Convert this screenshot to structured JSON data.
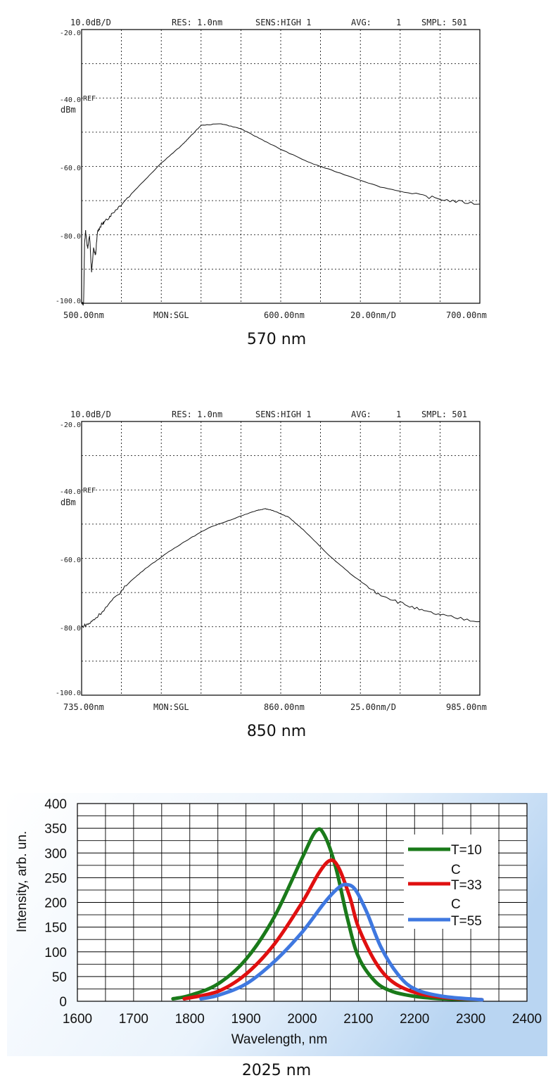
{
  "chart_data": [
    {
      "type": "line",
      "header": {
        "scale": "10.0dB/D",
        "res": "RES: 1.0nm",
        "sens": "SENS:HIGH 1",
        "avg_label": "AVG:",
        "avg_value": "1",
        "smpl": "SMPL: 501"
      },
      "footer": {
        "start": "500.00nm",
        "mon": "MON:SGL",
        "center": "600.00nm",
        "span": "20.00nm/D",
        "stop": "700.00nm"
      },
      "yticks": [
        "-20.0",
        "-40.0",
        "-60.0",
        "-80.0",
        "-100.0"
      ],
      "ref_label": "REF",
      "unit_label": "dBm",
      "caption": "570 nm",
      "xlim": [
        500,
        700
      ],
      "ylim": [
        -100,
        -20
      ],
      "grid": true,
      "series": [
        {
          "x": [
            500,
            501,
            501.5,
            502,
            503,
            504,
            505,
            506,
            507,
            508,
            510,
            512,
            515,
            520,
            530,
            540,
            550,
            555,
            560,
            570,
            580,
            590,
            600,
            615,
            630,
            650,
            670,
            685,
            700
          ],
          "y": [
            -100,
            -100,
            -82,
            -79,
            -84,
            -80,
            -91,
            -84,
            -86,
            -79,
            -77,
            -76,
            -74,
            -71,
            -65,
            -59,
            -54,
            -51,
            -48,
            -47.5,
            -49,
            -52,
            -55,
            -59,
            -62,
            -66,
            -68.5,
            -70,
            -71
          ]
        }
      ]
    },
    {
      "type": "line",
      "header": {
        "scale": "10.0dB/D",
        "res": "RES: 1.0nm",
        "sens": "SENS:HIGH 1",
        "avg_label": "AVG:",
        "avg_value": "1",
        "smpl": "SMPL: 501"
      },
      "footer": {
        "start": "735.00nm",
        "mon": "MON:SGL",
        "center": "860.00nm",
        "span": "25.00nm/D",
        "stop": "985.00nm"
      },
      "yticks": [
        "-20.0",
        "-40.0",
        "-60.0",
        "-80.0",
        "-100.0"
      ],
      "ref_label": "REF",
      "unit_label": "dBm",
      "caption": "850 nm",
      "xlim": [
        735,
        985
      ],
      "ylim": [
        -100,
        -20
      ],
      "grid": true,
      "series": [
        {
          "x": [
            735,
            740,
            745,
            755,
            765,
            775,
            790,
            800,
            815,
            830,
            845,
            850,
            855,
            865,
            875,
            890,
            905,
            920,
            935,
            950,
            965,
            985
          ],
          "y": [
            -80,
            -79,
            -77,
            -72,
            -67,
            -63,
            -58,
            -55,
            -51,
            -48.5,
            -46,
            -45.5,
            -46,
            -48,
            -52,
            -59,
            -65,
            -70,
            -73,
            -75.5,
            -77,
            -78.5
          ]
        }
      ]
    },
    {
      "type": "line",
      "caption": "2025 nm",
      "xlabel": "Wavelength, nm",
      "ylabel": "Intensity, arb. un.",
      "xlim": [
        1600,
        2400
      ],
      "ylim": [
        0,
        400
      ],
      "xticks": [
        1600,
        1700,
        1800,
        1900,
        2000,
        2100,
        2200,
        2300,
        2400
      ],
      "yticks": [
        0,
        50,
        100,
        150,
        200,
        250,
        300,
        350,
        400
      ],
      "grid": true,
      "legend": "right",
      "legend_entries": [
        {
          "line1": "T=10",
          "line2": "C"
        },
        {
          "line1": "T=33",
          "line2": "C"
        },
        {
          "line1": "T=55",
          "line2": ""
        }
      ],
      "series": [
        {
          "name": "T=10 C",
          "color": "#1a7a1a",
          "x": [
            1770,
            1800,
            1850,
            1900,
            1950,
            2000,
            2025,
            2040,
            2060,
            2080,
            2100,
            2130,
            2160,
            2200,
            2250,
            2320
          ],
          "y": [
            5,
            12,
            35,
            85,
            170,
            290,
            345,
            335,
            270,
            170,
            90,
            40,
            20,
            10,
            5,
            3
          ]
        },
        {
          "name": "T=33 C",
          "color": "#e01010",
          "x": [
            1790,
            1850,
            1900,
            1950,
            2000,
            2030,
            2050,
            2065,
            2085,
            2100,
            2130,
            2160,
            2200,
            2250,
            2320
          ],
          "y": [
            5,
            20,
            55,
            115,
            200,
            260,
            285,
            270,
            210,
            150,
            80,
            40,
            18,
            8,
            3
          ]
        },
        {
          "name": "T=55 C",
          "color": "#3f78e0",
          "x": [
            1820,
            1850,
            1900,
            1950,
            2000,
            2040,
            2065,
            2080,
            2095,
            2115,
            2140,
            2170,
            2200,
            2250,
            2320
          ],
          "y": [
            5,
            12,
            35,
            80,
            140,
            200,
            230,
            236,
            225,
            180,
            110,
            55,
            25,
            10,
            3
          ]
        }
      ]
    }
  ]
}
